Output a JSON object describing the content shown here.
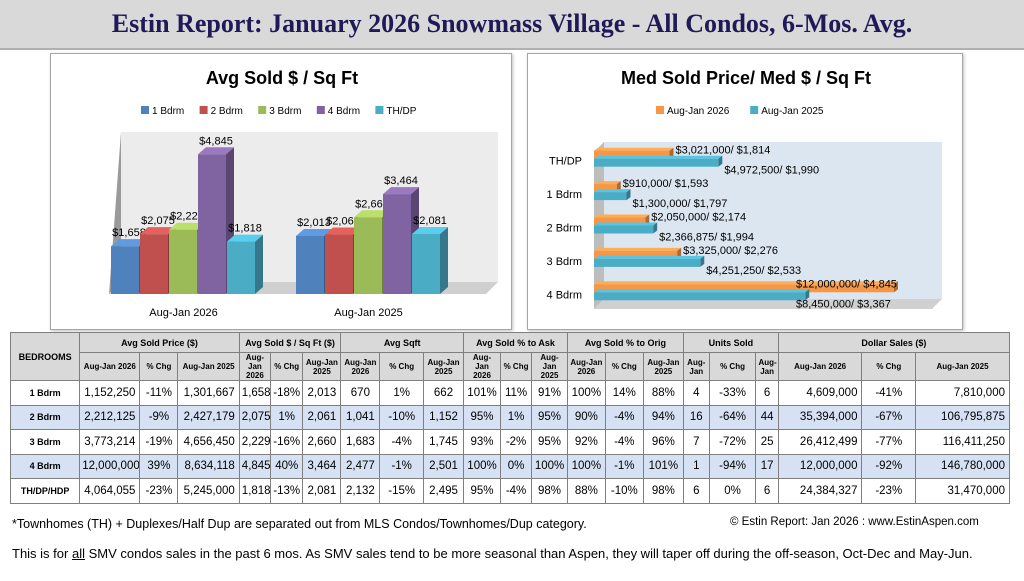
{
  "header": {
    "title": "Estin Report:  January 2026 Snowmass Village - All Condos,  6-Mos. Avg."
  },
  "chart_data": [
    {
      "type": "bar",
      "title": "Avg Sold $ / Sq Ft",
      "categories": [
        "Aug-Jan 2026",
        "Aug-Jan 2025"
      ],
      "series": [
        {
          "name": "1 Bdrm",
          "color": "#4f81bd",
          "values": [
            1658,
            2013
          ],
          "labels": [
            "$1,658",
            "$2,013"
          ]
        },
        {
          "name": "2 Bdrm",
          "color": "#c0504d",
          "values": [
            2075,
            2061
          ],
          "labels": [
            "$2,075",
            "$2,061"
          ]
        },
        {
          "name": "3 Bdrm",
          "color": "#9bbb59",
          "values": [
            2229,
            2660
          ],
          "labels": [
            "$2,229",
            "$2,660"
          ]
        },
        {
          "name": "4 Bdrm",
          "color": "#8064a2",
          "values": [
            4845,
            3464
          ],
          "labels": [
            "$4,845",
            "$3,464"
          ]
        },
        {
          "name": "TH/DP",
          "color": "#4bacc6",
          "values": [
            1818,
            2081
          ],
          "labels": [
            "$1,818",
            "$2,081"
          ]
        }
      ],
      "ylim": [
        0,
        5000
      ],
      "legend": "top",
      "grid": false
    },
    {
      "type": "bar",
      "orientation": "horizontal",
      "title": "Med Sold Price/ Med $ / Sq Ft",
      "categories": [
        "TH/DP",
        "1 Bdrm",
        "2 Bdrm",
        "3 Bdrm",
        "4 Bdrm"
      ],
      "series": [
        {
          "name": "Aug-Jan 2026",
          "color": "#f79646",
          "values": [
            3021000,
            910000,
            2050000,
            3325000,
            12000000
          ],
          "labels": [
            "$3,021,000/ $1,814",
            "$910,000/ $1,593",
            "$2,050,000/ $2,174",
            "$3,325,000/ $2,276",
            "$12,000,000/ $4,845"
          ]
        },
        {
          "name": "Aug-Jan 2025",
          "color": "#4bacc6",
          "values": [
            4972500,
            1300000,
            2366875,
            4251250,
            8450000
          ],
          "labels": [
            "$4,972,500/ $1,990",
            "$1,300,000/ $1,797",
            "$2,366,875/ $1,994",
            "$4,251,250/ $2,533",
            "$8,450,000/ $3,367"
          ]
        }
      ],
      "xlim": [
        0,
        12000000
      ],
      "legend": "top",
      "grid": false
    }
  ],
  "table": {
    "bedrooms_header": "BEDROOMS",
    "groups": [
      {
        "label": "Avg Sold Price ($)",
        "sub": [
          "Aug-Jan 2026",
          "% Chg",
          "Aug-Jan 2025"
        ]
      },
      {
        "label": "Avg Sold $ / Sq Ft ($)",
        "sub": [
          "Aug-Jan 2026",
          "% Chg",
          "Aug-Jan 2025"
        ]
      },
      {
        "label": "Avg Sqft",
        "sub": [
          "Aug-Jan 2026",
          "% Chg",
          "Aug-Jan 2025"
        ]
      },
      {
        "label": "Avg Sold % to Ask",
        "sub": [
          "Aug-Jan 2026",
          "% Chg",
          "Aug-Jan 2025"
        ]
      },
      {
        "label": "Avg Sold % to Orig",
        "sub": [
          "Aug-Jan 2026",
          "% Chg",
          "Aug-Jan 2025"
        ]
      },
      {
        "label": "Units Sold",
        "sub": [
          "Aug-Jan",
          "% Chg",
          "Aug-Jan"
        ]
      },
      {
        "label": "Dollar Sales ($)",
        "sub": [
          "Aug-Jan 2026",
          "% Chg",
          "Aug-Jan 2025"
        ]
      }
    ],
    "rows": [
      {
        "label": "1 Bdrm",
        "cells": [
          "1,152,250",
          "-11%",
          "1,301,667",
          "1,658",
          "-18%",
          "2,013",
          "670",
          "1%",
          "662",
          "101%",
          "11%",
          "91%",
          "100%",
          "14%",
          "88%",
          "4",
          "-33%",
          "6",
          "4,609,000",
          "-41%",
          "7,810,000"
        ]
      },
      {
        "label": "2 Bdrm",
        "cells": [
          "2,212,125",
          "-9%",
          "2,427,179",
          "2,075",
          "1%",
          "2,061",
          "1,041",
          "-10%",
          "1,152",
          "95%",
          "1%",
          "95%",
          "90%",
          "-4%",
          "94%",
          "16",
          "-64%",
          "44",
          "35,394,000",
          "-67%",
          "106,795,875"
        ]
      },
      {
        "label": "3 Bdrm",
        "cells": [
          "3,773,214",
          "-19%",
          "4,656,450",
          "2,229",
          "-16%",
          "2,660",
          "1,683",
          "-4%",
          "1,745",
          "93%",
          "-2%",
          "95%",
          "92%",
          "-4%",
          "96%",
          "7",
          "-72%",
          "25",
          "26,412,499",
          "-77%",
          "116,411,250"
        ]
      },
      {
        "label": "4 Bdrm",
        "cells": [
          "12,000,000",
          "39%",
          "8,634,118",
          "4,845",
          "40%",
          "3,464",
          "2,477",
          "-1%",
          "2,501",
          "100%",
          "0%",
          "100%",
          "100%",
          "-1%",
          "101%",
          "1",
          "-94%",
          "17",
          "12,000,000",
          "-92%",
          "146,780,000"
        ]
      },
      {
        "label": "TH/DP/HDP",
        "cells": [
          "4,064,055",
          "-23%",
          "5,245,000",
          "1,818",
          "-13%",
          "2,081",
          "2,132",
          "-15%",
          "2,495",
          "95%",
          "-4%",
          "98%",
          "88%",
          "-10%",
          "98%",
          "6",
          "0%",
          "6",
          "24,384,327",
          "-23%",
          "31,470,000"
        ]
      }
    ]
  },
  "footnotes": {
    "townhomes": "*Townhomes (TH) + Duplexes/Half Dup are separated out from MLS Condos/Townhomes/Dup category.",
    "copyright": "© Estin Report: Jan 2026 : www.EstinAspen.com"
  },
  "note": {
    "pre": "This is for ",
    "underlined": "all",
    "post": " SMV condos sales in the past 6 mos. As SMV sales tend to be more seasonal than Aspen, they will taper off during the off-season, Oct-Dec and May-Jun."
  }
}
